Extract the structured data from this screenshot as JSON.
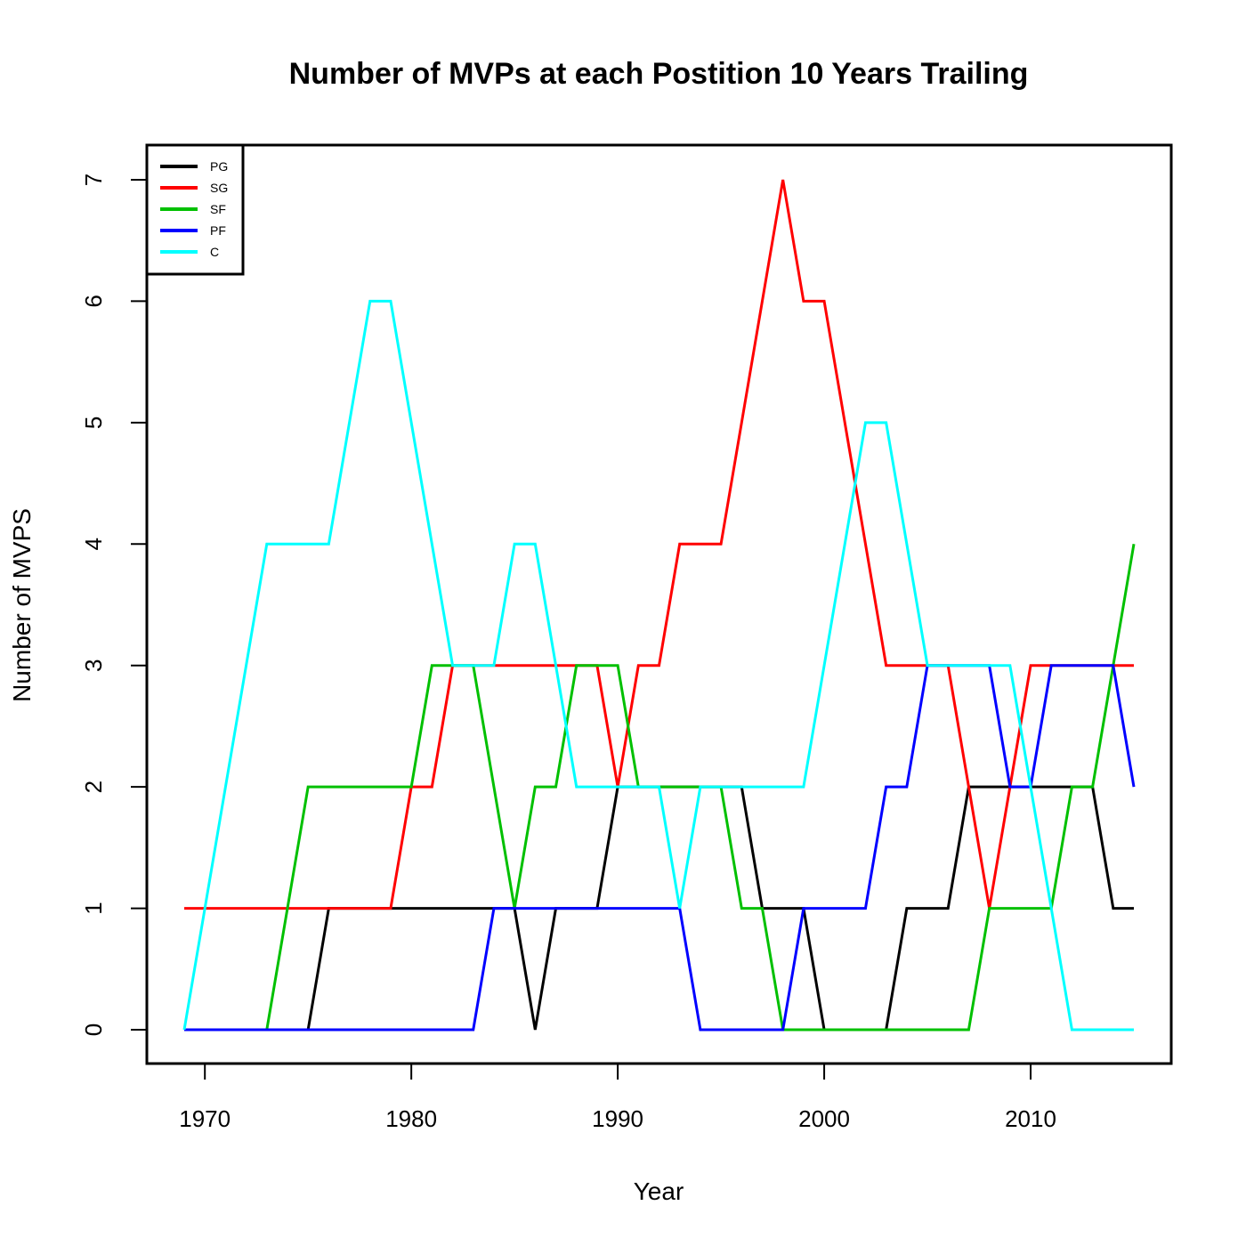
{
  "chart_data": {
    "type": "line",
    "title": "Number of MVPs at each Postition 10 Years Trailing",
    "xlabel": "Year",
    "ylabel": "Number of MVPS",
    "xlim": [
      1969,
      2015
    ],
    "ylim": [
      0,
      7
    ],
    "xticks": [
      "1970",
      "1980",
      "1990",
      "2000",
      "2010"
    ],
    "yticks": [
      "0",
      "1",
      "2",
      "3",
      "4",
      "5",
      "6",
      "7"
    ],
    "legend_position": "top-left",
    "grid": false,
    "x": [
      1969,
      1970,
      1971,
      1972,
      1973,
      1974,
      1975,
      1976,
      1977,
      1978,
      1979,
      1980,
      1981,
      1982,
      1983,
      1984,
      1985,
      1986,
      1987,
      1988,
      1989,
      1990,
      1991,
      1992,
      1993,
      1994,
      1995,
      1996,
      1997,
      1998,
      1999,
      2000,
      2001,
      2002,
      2003,
      2004,
      2005,
      2006,
      2007,
      2008,
      2009,
      2010,
      2011,
      2012,
      2013,
      2014,
      2015
    ],
    "series": [
      {
        "name": "PG",
        "color": "#000000",
        "values": [
          0,
          0,
          0,
          0,
          0,
          0,
          0,
          1,
          1,
          1,
          1,
          1,
          1,
          1,
          1,
          1,
          1,
          0,
          1,
          1,
          1,
          2,
          2,
          2,
          2,
          2,
          2,
          2,
          1,
          1,
          1,
          0,
          0,
          0,
          0,
          1,
          1,
          1,
          2,
          2,
          2,
          2,
          2,
          2,
          2,
          1,
          1
        ]
      },
      {
        "name": "SG",
        "color": "#ff0000",
        "values": [
          1,
          1,
          1,
          1,
          1,
          1,
          1,
          1,
          1,
          1,
          1,
          2,
          2,
          3,
          3,
          3,
          3,
          3,
          3,
          3,
          3,
          2,
          3,
          3,
          4,
          4,
          4,
          5,
          6,
          7,
          6,
          6,
          5,
          4,
          3,
          3,
          3,
          3,
          2,
          1,
          2,
          3,
          3,
          3,
          3,
          3,
          3
        ]
      },
      {
        "name": "SF",
        "color": "#00c000",
        "values": [
          0,
          0,
          0,
          0,
          0,
          1,
          2,
          2,
          2,
          2,
          2,
          2,
          3,
          3,
          3,
          2,
          1,
          2,
          2,
          3,
          3,
          3,
          2,
          2,
          2,
          2,
          2,
          1,
          1,
          0,
          0,
          0,
          0,
          0,
          0,
          0,
          0,
          0,
          0,
          1,
          1,
          1,
          1,
          2,
          2,
          3,
          4
        ]
      },
      {
        "name": "PF",
        "color": "#0000ff",
        "values": [
          0,
          0,
          0,
          0,
          0,
          0,
          0,
          0,
          0,
          0,
          0,
          0,
          0,
          0,
          0,
          1,
          1,
          1,
          1,
          1,
          1,
          1,
          1,
          1,
          1,
          0,
          0,
          0,
          0,
          0,
          1,
          1,
          1,
          1,
          2,
          2,
          3,
          3,
          3,
          3,
          2,
          2,
          3,
          3,
          3,
          3,
          2
        ]
      },
      {
        "name": "C",
        "color": "#00ffff",
        "values": [
          0,
          1,
          2,
          3,
          4,
          4,
          4,
          4,
          5,
          6,
          6,
          5,
          4,
          3,
          3,
          3,
          4,
          4,
          3,
          2,
          2,
          2,
          2,
          2,
          1,
          2,
          2,
          2,
          2,
          2,
          2,
          3,
          4,
          5,
          5,
          4,
          3,
          3,
          3,
          3,
          3,
          2,
          1,
          0,
          0,
          0,
          0
        ]
      }
    ]
  }
}
